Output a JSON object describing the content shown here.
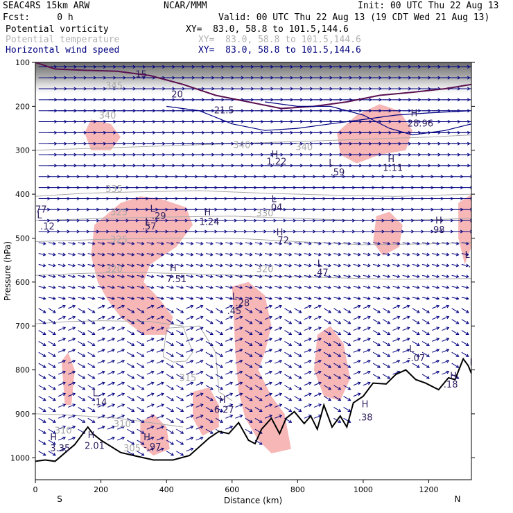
{
  "header": {
    "model": "SEAC4RS 15km ARW",
    "forecast": "Fcst:     0 h",
    "producer": "NCAR/MMM",
    "init": "Init: 00 UTC Thu 22 Aug 13",
    "valid": "Valid: 00 UTC Thu 22 Aug 13 (19 CDT Wed 21 Aug 13)",
    "fields": [
      {
        "name": "Potential vorticity",
        "xy": "XY=  83.0, 58.8 to 101.5,144.6",
        "color": "#000000"
      },
      {
        "name": "Potential temperature",
        "xy": "XY=  83.0, 58.8 to 101.5,144.6",
        "color": "#b0b0b0"
      },
      {
        "name": "Horizontal wind speed",
        "xy": "XY=  83.0, 58.8 to 101.5,144.6",
        "color": "#000080"
      }
    ]
  },
  "chart_data": {
    "type": "cross-section",
    "xlabel": "Distance (km)",
    "ylabel": "Pressure (hPa)",
    "xlim": [
      0,
      1330
    ],
    "ylim": [
      100,
      1050
    ],
    "x_ticks": [
      0,
      200,
      400,
      600,
      800,
      1000,
      1200
    ],
    "y_ticks": [
      100,
      200,
      300,
      400,
      500,
      600,
      700,
      800,
      900,
      1000
    ],
    "end_labels": {
      "left": "S",
      "right": "N"
    },
    "terrain_color": "#000000",
    "pv_fill_color": "#f7b7b7",
    "theta_color": "#a8a8a8",
    "wind_color": "#000080",
    "pv_contour_color": "#5a1050",
    "terrain": [
      [
        0,
        1008
      ],
      [
        30,
        1005
      ],
      [
        60,
        1008
      ],
      [
        120,
        970
      ],
      [
        160,
        930
      ],
      [
        175,
        945
      ],
      [
        200,
        960
      ],
      [
        260,
        988
      ],
      [
        300,
        995
      ],
      [
        360,
        1005
      ],
      [
        420,
        1005
      ],
      [
        470,
        995
      ],
      [
        500,
        975
      ],
      [
        530,
        955
      ],
      [
        560,
        940
      ],
      [
        590,
        945
      ],
      [
        620,
        920
      ],
      [
        650,
        960
      ],
      [
        670,
        968
      ],
      [
        690,
        935
      ],
      [
        720,
        910
      ],
      [
        745,
        945
      ],
      [
        765,
        910
      ],
      [
        790,
        895
      ],
      [
        820,
        922
      ],
      [
        840,
        905
      ],
      [
        860,
        935
      ],
      [
        880,
        880
      ],
      [
        905,
        930
      ],
      [
        930,
        905
      ],
      [
        950,
        930
      ],
      [
        970,
        875
      ],
      [
        1000,
        860
      ],
      [
        1030,
        830
      ],
      [
        1070,
        832
      ],
      [
        1100,
        810
      ],
      [
        1130,
        800
      ],
      [
        1160,
        822
      ],
      [
        1190,
        830
      ],
      [
        1230,
        845
      ],
      [
        1260,
        818
      ],
      [
        1280,
        822
      ],
      [
        1305,
        775
      ],
      [
        1320,
        790
      ],
      [
        1330,
        808
      ]
    ],
    "isentropes": [
      {
        "label": "345",
        "points": [
          [
            0,
            300
          ],
          [
            200,
            295
          ],
          [
            400,
            290
          ],
          [
            600,
            285
          ],
          [
            800,
            280
          ],
          [
            1000,
            275
          ],
          [
            1200,
            270
          ],
          [
            1330,
            265
          ]
        ]
      },
      {
        "label": "335",
        "points": [
          [
            0,
            405
          ],
          [
            150,
            398
          ],
          [
            300,
            395
          ],
          [
            500,
            392
          ],
          [
            700,
            398
          ],
          [
            900,
            402
          ],
          [
            1100,
            405
          ],
          [
            1330,
            400
          ]
        ]
      },
      {
        "label": "330",
        "points": [
          [
            0,
            460
          ],
          [
            200,
            455
          ],
          [
            400,
            452
          ],
          [
            600,
            450
          ],
          [
            800,
            455
          ],
          [
            1000,
            460
          ],
          [
            1200,
            458
          ],
          [
            1330,
            455
          ]
        ]
      },
      {
        "label": "325",
        "points": [
          [
            0,
            508
          ],
          [
            200,
            503
          ],
          [
            400,
            500
          ],
          [
            600,
            500
          ],
          [
            800,
            508
          ],
          [
            1000,
            515
          ],
          [
            1200,
            513
          ],
          [
            1330,
            510
          ]
        ]
      },
      {
        "label": "320",
        "points": [
          [
            0,
            585
          ],
          [
            150,
            580
          ],
          [
            300,
            578
          ],
          [
            500,
            582
          ],
          [
            700,
            586
          ],
          [
            900,
            590
          ],
          [
            1100,
            594
          ],
          [
            1330,
            592
          ]
        ]
      },
      {
        "label": "315",
        "points": [
          [
            0,
            695
          ],
          [
            100,
            690
          ],
          [
            200,
            688
          ],
          [
            350,
            690
          ],
          [
            450,
            700
          ],
          [
            480,
            760
          ],
          [
            460,
            780
          ],
          [
            420,
            782
          ],
          [
            390,
            770
          ],
          [
            400,
            705
          ],
          [
            500,
            700
          ],
          [
            550,
            760
          ],
          [
            560,
            850
          ],
          [
            600,
            870
          ]
        ]
      },
      {
        "label": "310",
        "points": [
          [
            0,
            900
          ],
          [
            80,
            902
          ],
          [
            150,
            905
          ],
          [
            250,
            910
          ],
          [
            350,
            920
          ],
          [
            450,
            930
          ]
        ]
      }
    ],
    "pv_regions": [
      [
        [
          170,
          230
        ],
        [
          230,
          240
        ],
        [
          260,
          270
        ],
        [
          230,
          300
        ],
        [
          170,
          300
        ],
        [
          150,
          260
        ]
      ],
      [
        [
          920,
          260
        ],
        [
          980,
          220
        ],
        [
          1050,
          195
        ],
        [
          1110,
          210
        ],
        [
          1150,
          255
        ],
        [
          1130,
          300
        ],
        [
          1050,
          310
        ],
        [
          980,
          330
        ],
        [
          930,
          310
        ]
      ],
      [
        [
          180,
          470
        ],
        [
          260,
          420
        ],
        [
          320,
          405
        ],
        [
          380,
          410
        ],
        [
          460,
          430
        ],
        [
          480,
          470
        ],
        [
          430,
          520
        ],
        [
          350,
          560
        ],
        [
          330,
          600
        ],
        [
          380,
          640
        ],
        [
          420,
          680
        ],
        [
          400,
          720
        ],
        [
          330,
          720
        ],
        [
          260,
          680
        ],
        [
          220,
          640
        ],
        [
          190,
          600
        ],
        [
          170,
          540
        ]
      ],
      [
        [
          600,
          610
        ],
        [
          650,
          600
        ],
        [
          700,
          630
        ],
        [
          720,
          700
        ],
        [
          700,
          760
        ],
        [
          680,
          800
        ],
        [
          720,
          860
        ],
        [
          760,
          900
        ],
        [
          780,
          980
        ],
        [
          720,
          990
        ],
        [
          680,
          960
        ],
        [
          640,
          910
        ],
        [
          620,
          850
        ],
        [
          610,
          760
        ]
      ],
      [
        [
          1040,
          450
        ],
        [
          1080,
          440
        ],
        [
          1120,
          470
        ],
        [
          1110,
          520
        ],
        [
          1060,
          540
        ],
        [
          1030,
          510
        ]
      ],
      [
        [
          1290,
          420
        ],
        [
          1330,
          400
        ],
        [
          1330,
          520
        ],
        [
          1310,
          560
        ],
        [
          1290,
          500
        ]
      ],
      [
        [
          80,
          780
        ],
        [
          100,
          760
        ],
        [
          120,
          800
        ],
        [
          110,
          880
        ],
        [
          90,
          880
        ]
      ],
      [
        [
          860,
          720
        ],
        [
          900,
          700
        ],
        [
          940,
          740
        ],
        [
          960,
          820
        ],
        [
          930,
          870
        ],
        [
          880,
          860
        ],
        [
          850,
          800
        ]
      ],
      [
        [
          480,
          850
        ],
        [
          530,
          840
        ],
        [
          560,
          880
        ],
        [
          560,
          930
        ],
        [
          510,
          950
        ],
        [
          480,
          910
        ]
      ],
      [
        [
          320,
          920
        ],
        [
          360,
          900
        ],
        [
          400,
          930
        ],
        [
          410,
          980
        ],
        [
          360,
          995
        ],
        [
          320,
          970
        ]
      ]
    ],
    "tropopause": [
      [
        0,
        100
      ],
      [
        60,
        115
      ],
      [
        150,
        118
      ],
      [
        250,
        120
      ],
      [
        350,
        130
      ],
      [
        450,
        150
      ],
      [
        550,
        175
      ],
      [
        650,
        190
      ],
      [
        750,
        205
      ],
      [
        850,
        200
      ],
      [
        950,
        190
      ],
      [
        1050,
        175
      ],
      [
        1150,
        168
      ],
      [
        1250,
        160
      ],
      [
        1330,
        150
      ]
    ],
    "jet_contours": [
      [
        [
          400,
          200
        ],
        [
          500,
          210
        ],
        [
          600,
          240
        ],
        [
          700,
          255
        ],
        [
          800,
          250
        ],
        [
          900,
          240
        ],
        [
          1000,
          230
        ],
        [
          1100,
          220
        ],
        [
          1200,
          215
        ],
        [
          1330,
          210
        ]
      ],
      [
        [
          700,
          190
        ],
        [
          800,
          200
        ],
        [
          900,
          200
        ],
        [
          1000,
          220
        ],
        [
          1080,
          250
        ],
        [
          1150,
          265
        ],
        [
          1250,
          255
        ],
        [
          1330,
          240
        ]
      ]
    ],
    "annotations": [
      {
        "text": "H",
        "x": 45,
        "y": 960
      },
      {
        "text": "3.35",
        "x": 45,
        "y": 985
      },
      {
        "text": "H",
        "x": 160,
        "y": 955
      },
      {
        "text": "2.01",
        "x": 150,
        "y": 980
      },
      {
        "text": "H",
        "x": 330,
        "y": 960
      },
      {
        "text": "-.97",
        "x": 330,
        "y": 982
      },
      {
        "text": "L",
        "x": 175,
        "y": 860
      },
      {
        "text": ".14",
        "x": 175,
        "y": 880
      },
      {
        "text": "H",
        "x": 560,
        "y": 875
      },
      {
        "text": "6.27",
        "x": 545,
        "y": 898
      },
      {
        "text": "H",
        "x": 995,
        "y": 885
      },
      {
        "text": ".38",
        "x": 985,
        "y": 915
      },
      {
        "text": "H",
        "x": 1265,
        "y": 820
      },
      {
        "text": ".18",
        "x": 1245,
        "y": 840
      },
      {
        "text": "L",
        "x": 1140,
        "y": 760
      },
      {
        "text": "-.07",
        "x": 1135,
        "y": 780
      },
      {
        "text": "L",
        "x": 1325,
        "y": 790
      },
      {
        "text": "L",
        "x": 600,
        "y": 640
      },
      {
        "text": ".28",
        "x": 610,
        "y": 655
      },
      {
        "text": ".45",
        "x": 585,
        "y": 673
      },
      {
        "text": "H",
        "x": 410,
        "y": 575
      },
      {
        "text": "7.51",
        "x": 400,
        "y": 600
      },
      {
        "text": "L",
        "x": 860,
        "y": 565
      },
      {
        "text": ".47",
        "x": 850,
        "y": 585
      },
      {
        "text": "L",
        "x": 1310,
        "y": 545
      },
      {
        "text": ".2",
        "x": 1320,
        "y": 566
      },
      {
        "text": "H",
        "x": 1220,
        "y": 467
      },
      {
        "text": ".98",
        "x": 1205,
        "y": 488
      },
      {
        "text": "L",
        "x": 350,
        "y": 440
      },
      {
        "text": ".29",
        "x": 355,
        "y": 457
      },
      {
        "text": "L",
        "x": 335,
        "y": 470
      },
      {
        "text": ".57",
        "x": 325,
        "y": 480
      },
      {
        "text": "H",
        "x": 515,
        "y": 448
      },
      {
        "text": "1.24",
        "x": 500,
        "y": 470
      },
      {
        "text": "L",
        "x": 720,
        "y": 418
      },
      {
        "text": ".04",
        "x": 710,
        "y": 437
      },
      {
        "text": "H",
        "x": 735,
        "y": 494
      },
      {
        "text": ".72",
        "x": 730,
        "y": 512
      },
      {
        "text": "L",
        "x": 5,
        "y": 455
      },
      {
        "text": ".12",
        "x": 15,
        "y": 480
      },
      {
        "text": "77",
        "x": 0,
        "y": 442
      },
      {
        "text": "H",
        "x": 720,
        "y": 316
      },
      {
        "text": "1.22",
        "x": 705,
        "y": 333
      },
      {
        "text": "L",
        "x": 895,
        "y": 335
      },
      {
        "text": ".59",
        "x": 900,
        "y": 357
      },
      {
        "text": "H",
        "x": 1075,
        "y": 327
      },
      {
        "text": "1.11",
        "x": 1060,
        "y": 347
      },
      {
        "text": "H",
        "x": 1145,
        "y": 222
      },
      {
        "text": "28.96",
        "x": 1135,
        "y": 246
      },
      {
        "text": "20",
        "x": 415,
        "y": 180
      },
      {
        "text": "21.5",
        "x": 545,
        "y": 216
      },
      {
        "text": "15",
        "x": 305,
        "y": 134
      }
    ],
    "theta_labels": [
      {
        "text": "345",
        "x": 240,
        "y": 160
      },
      {
        "text": "340",
        "x": 220,
        "y": 228
      },
      {
        "text": "340",
        "x": 630,
        "y": 295
      },
      {
        "text": "340",
        "x": 820,
        "y": 300
      },
      {
        "text": "335",
        "x": 240,
        "y": 395
      },
      {
        "text": "330",
        "x": 700,
        "y": 450
      },
      {
        "text": "325",
        "x": 255,
        "y": 448
      },
      {
        "text": "325",
        "x": 255,
        "y": 510
      },
      {
        "text": "320",
        "x": 240,
        "y": 577
      },
      {
        "text": "320",
        "x": 700,
        "y": 577
      },
      {
        "text": "315",
        "x": 465,
        "y": 825
      },
      {
        "text": "310",
        "x": 265,
        "y": 930
      },
      {
        "text": "310",
        "x": 85,
        "y": 945
      },
      {
        "text": "305",
        "x": 295,
        "y": 985
      }
    ]
  }
}
